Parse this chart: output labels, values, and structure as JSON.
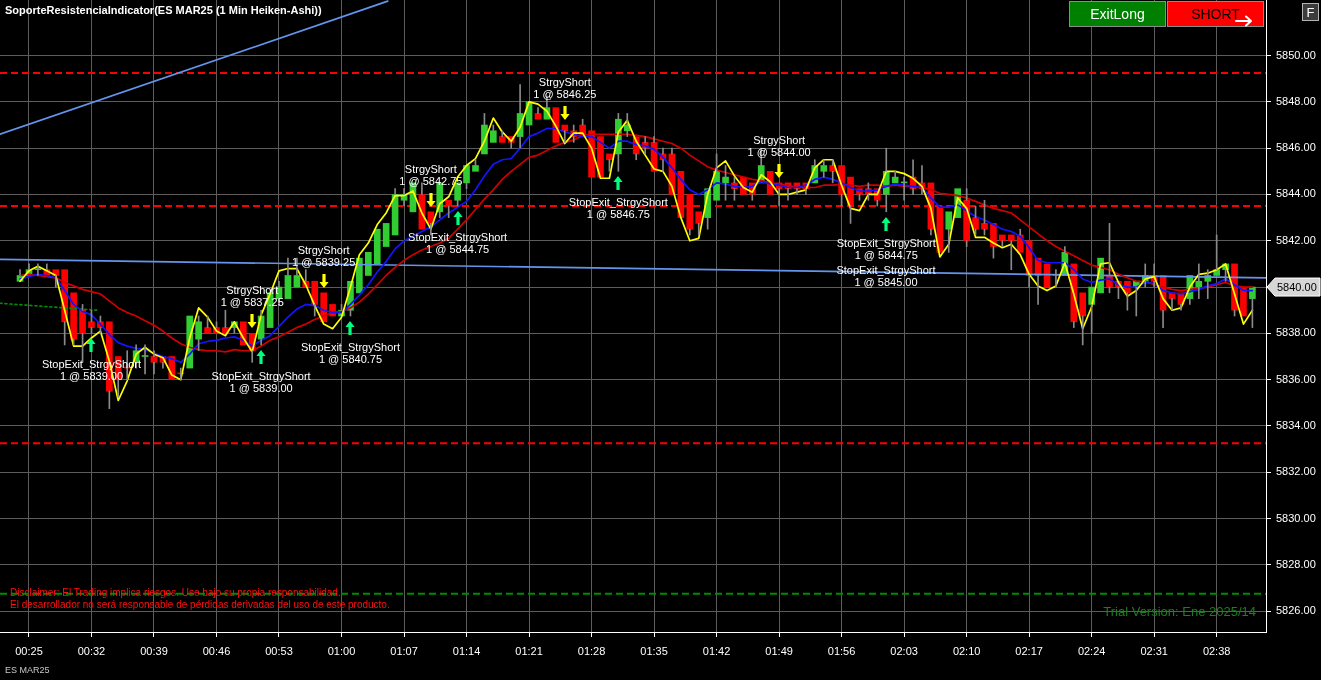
{
  "chart_data": {
    "type": "candlestick",
    "title": "SoporteResistenciaIndicator(ES MAR25 (1 Min Heiken-Ashi))",
    "x": [
      0.4,
      0.4167,
      0.4333,
      0.45,
      0.4667,
      0.4833,
      0.5,
      0.5167,
      0.5333,
      0.55,
      0.5667,
      0.5833,
      0.6,
      0.6167,
      0.6333,
      0.65,
      0.6667,
      0.6833,
      0.7,
      0.7167,
      0.7333,
      0.75,
      0.7667,
      0.7833,
      0.8,
      0.8167,
      0.8333,
      0.85,
      0.8667,
      0.8833,
      0.9,
      0.9167,
      0.9333,
      0.95,
      0.9667,
      0.9833,
      1,
      1.0167,
      1.0333,
      1.05,
      1.0667,
      1.0833,
      1.1,
      1.1167,
      1.1333,
      1.15,
      1.1667,
      1.1833,
      1.2,
      1.2167,
      1.2333,
      1.25,
      1.2667,
      1.2833,
      1.3,
      1.3167,
      1.3333,
      1.35,
      1.3667,
      1.3833,
      1.4,
      1.4167,
      1.4333,
      1.45,
      1.4667,
      1.4833,
      1.5,
      1.5167,
      1.5333,
      1.55,
      1.5667,
      1.5833,
      1.6,
      1.6167,
      1.6333,
      1.65,
      1.6667,
      1.6833,
      1.7,
      1.7167,
      1.7333,
      1.75,
      1.7667,
      1.7833,
      1.8,
      1.8167,
      1.8333,
      1.85,
      1.8667,
      1.8833,
      1.9,
      1.9167,
      1.9333,
      1.95,
      1.9667,
      1.9833,
      2,
      2.0167,
      2.0333,
      2.05,
      2.0667,
      2.0833,
      2.1,
      2.1167,
      2.1333,
      2.15,
      2.1667,
      2.1833,
      2.2,
      2.2167,
      2.2333,
      2.25,
      2.2667,
      2.2833,
      2.3,
      2.3167,
      2.3333,
      2.35,
      2.3667,
      2.3833,
      2.4,
      2.4167,
      2.4333,
      2.45,
      2.4667,
      2.4833,
      2.5,
      2.5167,
      2.5333,
      2.55,
      2.5667,
      2.5833,
      2.6,
      2.6167,
      2.6333,
      2.65,
      2.6667,
      2.6833,
      2.7
    ],
    "ohlc": [
      [
        5840.25,
        5840.75,
        5840.25,
        5840.5
      ],
      [
        5840.5,
        5841.0,
        5840.5,
        5840.75
      ],
      [
        5840.75,
        5841.0,
        5840.5,
        5840.75
      ],
      [
        5840.75,
        5841.0,
        5840.5,
        5840.5
      ],
      [
        5840.75,
        5840.75,
        5840.0,
        5840.5
      ],
      [
        5840.75,
        5840.75,
        5837.5,
        5838.5
      ],
      [
        5839.75,
        5839.75,
        5837.5,
        5837.75
      ],
      [
        5839.0,
        5839.25,
        5836.75,
        5838.0
      ],
      [
        5838.5,
        5839.0,
        5838.0,
        5838.25
      ],
      [
        5838.5,
        5838.75,
        5838.0,
        5838.25
      ],
      [
        5838.5,
        5838.5,
        5834.75,
        5835.5
      ],
      [
        5837.0,
        5837.0,
        5835.25,
        5836.0
      ],
      [
        5836.5,
        5837.25,
        5836.0,
        5836.5
      ],
      [
        5836.75,
        5837.5,
        5836.5,
        5837.25
      ],
      [
        5837.0,
        5837.5,
        5836.25,
        5837.0
      ],
      [
        5837.0,
        5837.25,
        5836.25,
        5836.75
      ],
      [
        5837.0,
        5837.0,
        5836.5,
        5836.75
      ],
      [
        5837.0,
        5837.0,
        5836.0,
        5836.0
      ],
      [
        5836.25,
        5836.5,
        5836.0,
        5836.25
      ],
      [
        5836.5,
        5838.75,
        5836.5,
        5838.75
      ],
      [
        5837.75,
        5838.75,
        5837.25,
        5838.5
      ],
      [
        5838.25,
        5838.75,
        5838.0,
        5838.0
      ],
      [
        5838.25,
        5838.5,
        5838.0,
        5838.0
      ],
      [
        5838.25,
        5839.0,
        5838.0,
        5838.0
      ],
      [
        5838.25,
        5838.5,
        5838.0,
        5838.5
      ],
      [
        5838.5,
        5838.5,
        5837.5,
        5837.5
      ],
      [
        5838.0,
        5838.0,
        5836.75,
        5837.25
      ],
      [
        5837.75,
        5839.0,
        5837.5,
        5838.75
      ],
      [
        5838.25,
        5839.75,
        5838.25,
        5839.75
      ],
      [
        5839.5,
        5840.25,
        5839.25,
        5840.0
      ],
      [
        5839.5,
        5841.25,
        5839.5,
        5840.5
      ],
      [
        5840.0,
        5841.25,
        5840.0,
        5840.5
      ],
      [
        5840.25,
        5840.75,
        5840.0,
        5840.0
      ],
      [
        5840.25,
        5840.25,
        5838.75,
        5839.25
      ],
      [
        5839.75,
        5839.75,
        5838.5,
        5838.5
      ],
      [
        5839.25,
        5839.25,
        5838.75,
        5838.75
      ],
      [
        5838.75,
        5839.25,
        5838.75,
        5839.0
      ],
      [
        5839.0,
        5840.25,
        5838.75,
        5840.25
      ],
      [
        5839.75,
        5841.25,
        5839.75,
        5841.25
      ],
      [
        5840.5,
        5841.5,
        5840.5,
        5841.5
      ],
      [
        5841.0,
        5842.5,
        5841.0,
        5842.5
      ],
      [
        5841.75,
        5842.75,
        5841.75,
        5842.75
      ],
      [
        5842.25,
        5844.25,
        5842.25,
        5844.0
      ],
      [
        5843.75,
        5844.25,
        5843.5,
        5844.0
      ],
      [
        5843.25,
        5844.5,
        5843.25,
        5844.5
      ],
      [
        5844.0,
        5844.5,
        5842.5,
        5842.5
      ],
      [
        5843.25,
        5843.25,
        5842.25,
        5842.75
      ],
      [
        5843.25,
        5844.5,
        5843.0,
        5844.5
      ],
      [
        5843.75,
        5843.75,
        5843.0,
        5843.5
      ],
      [
        5843.75,
        5844.5,
        5843.5,
        5844.5
      ],
      [
        5844.5,
        5845.25,
        5844.25,
        5845.25
      ],
      [
        5845.0,
        5845.5,
        5845.0,
        5845.25
      ],
      [
        5845.75,
        5847.5,
        5845.75,
        5847.0
      ],
      [
        5846.25,
        5847.0,
        5846.25,
        5846.75
      ],
      [
        5846.5,
        5846.75,
        5846.25,
        5846.25
      ],
      [
        5846.5,
        5846.5,
        5846.0,
        5846.25
      ],
      [
        5846.5,
        5848.75,
        5846.0,
        5847.5
      ],
      [
        5847.0,
        5848.0,
        5847.0,
        5848.0
      ],
      [
        5847.5,
        5847.75,
        5847.25,
        5847.25
      ],
      [
        5847.25,
        5848.25,
        5847.25,
        5847.75
      ],
      [
        5847.75,
        5847.75,
        5846.25,
        5846.25
      ],
      [
        5847.0,
        5847.0,
        5846.25,
        5846.75
      ],
      [
        5846.75,
        5847.0,
        5846.25,
        5846.5
      ],
      [
        5847.0,
        5847.25,
        5846.5,
        5846.5
      ],
      [
        5846.75,
        5846.75,
        5844.75,
        5844.75
      ],
      [
        5846.5,
        5846.5,
        5844.75,
        5844.75
      ],
      [
        5845.75,
        5845.75,
        5845.0,
        5845.5
      ],
      [
        5845.75,
        5847.5,
        5845.0,
        5847.25
      ],
      [
        5846.75,
        5847.5,
        5846.5,
        5847.0
      ],
      [
        5846.5,
        5846.5,
        5845.5,
        5845.75
      ],
      [
        5846.25,
        5846.5,
        5845.75,
        5846.0
      ],
      [
        5846.25,
        5846.5,
        5845.0,
        5845.0
      ],
      [
        5845.75,
        5846.0,
        5845.0,
        5845.5
      ],
      [
        5845.75,
        5846.0,
        5844.0,
        5844.0
      ],
      [
        5845.0,
        5845.0,
        5843.0,
        5843.0
      ],
      [
        5844.0,
        5844.0,
        5842.25,
        5842.5
      ],
      [
        5843.25,
        5843.25,
        5842.25,
        5842.75
      ],
      [
        5843.0,
        5844.25,
        5842.5,
        5844.25
      ],
      [
        5843.75,
        5845.75,
        5843.75,
        5845.0
      ],
      [
        5844.5,
        5845.25,
        5843.75,
        5844.75
      ],
      [
        5844.5,
        5844.75,
        5843.75,
        5844.25
      ],
      [
        5844.75,
        5844.75,
        5844.0,
        5844.0
      ],
      [
        5844.5,
        5844.5,
        5843.75,
        5844.0
      ],
      [
        5844.5,
        5846.0,
        5844.5,
        5845.25
      ],
      [
        5845.0,
        5845.0,
        5844.0,
        5844.0
      ],
      [
        5844.5,
        5844.5,
        5843.5,
        5844.25
      ],
      [
        5844.5,
        5844.5,
        5843.75,
        5844.25
      ],
      [
        5844.5,
        5844.5,
        5844.0,
        5844.25
      ],
      [
        5844.5,
        5844.5,
        5844.0,
        5844.25
      ],
      [
        5844.5,
        5845.5,
        5844.5,
        5845.25
      ],
      [
        5845.0,
        5845.5,
        5844.75,
        5845.25
      ],
      [
        5845.25,
        5845.5,
        5844.5,
        5845.0
      ],
      [
        5845.25,
        5845.25,
        5843.5,
        5844.0
      ],
      [
        5844.75,
        5844.75,
        5842.75,
        5843.5
      ],
      [
        5844.25,
        5844.25,
        5843.75,
        5844.0
      ],
      [
        5844.25,
        5844.5,
        5843.75,
        5844.0
      ],
      [
        5844.25,
        5844.25,
        5843.5,
        5843.75
      ],
      [
        5844.0,
        5846.0,
        5843.25,
        5845.0
      ],
      [
        5844.5,
        5845.0,
        5844.5,
        5844.75
      ],
      [
        5844.5,
        5844.75,
        5843.75,
        5844.5
      ],
      [
        5844.75,
        5845.5,
        5844.0,
        5844.25
      ],
      [
        5844.5,
        5845.25,
        5844.0,
        5844.25
      ],
      [
        5844.5,
        5844.5,
        5842.25,
        5842.5
      ],
      [
        5843.5,
        5843.5,
        5841.5,
        5841.5
      ],
      [
        5842.5,
        5843.25,
        5841.5,
        5843.25
      ],
      [
        5843.0,
        5844.25,
        5843.0,
        5844.25
      ],
      [
        5843.75,
        5844.25,
        5841.75,
        5842.0
      ],
      [
        5843.0,
        5843.5,
        5842.25,
        5842.5
      ],
      [
        5842.75,
        5843.75,
        5842.25,
        5842.5
      ],
      [
        5842.75,
        5842.75,
        5841.25,
        5841.75
      ],
      [
        5842.25,
        5842.25,
        5841.75,
        5842.0
      ],
      [
        5842.25,
        5842.25,
        5840.75,
        5842.0
      ],
      [
        5842.25,
        5842.5,
        5841.5,
        5841.5
      ],
      [
        5842.0,
        5842.0,
        5840.0,
        5840.5
      ],
      [
        5841.25,
        5841.25,
        5839.25,
        5840.5
      ],
      [
        5841.0,
        5841.0,
        5840.0,
        5840.0
      ],
      [
        5840.5,
        5840.75,
        5840.0,
        5840.5
      ],
      [
        5840.5,
        5841.75,
        5840.5,
        5841.5
      ],
      [
        5841.0,
        5841.0,
        5838.25,
        5838.5
      ],
      [
        5839.75,
        5839.75,
        5837.5,
        5838.75
      ],
      [
        5839.25,
        5840.0,
        5838.0,
        5840.0
      ],
      [
        5839.75,
        5841.25,
        5839.75,
        5841.25
      ],
      [
        5840.5,
        5842.75,
        5839.75,
        5840.0
      ],
      [
        5840.25,
        5840.25,
        5839.5,
        5840.0
      ],
      [
        5840.25,
        5840.25,
        5839.0,
        5839.75
      ],
      [
        5840.0,
        5840.25,
        5838.75,
        5840.25
      ],
      [
        5840.25,
        5841.0,
        5840.0,
        5840.5
      ],
      [
        5840.5,
        5841.0,
        5840.0,
        5840.25
      ],
      [
        5840.5,
        5840.5,
        5838.25,
        5839.0
      ],
      [
        5839.75,
        5839.75,
        5839.0,
        5839.5
      ],
      [
        5839.75,
        5839.75,
        5839.0,
        5839.25
      ],
      [
        5839.5,
        5840.5,
        5839.25,
        5840.5
      ],
      [
        5840.0,
        5841.0,
        5839.5,
        5840.25
      ],
      [
        5840.25,
        5840.75,
        5839.5,
        5840.5
      ],
      [
        5840.5,
        5842.25,
        5840.5,
        5840.75
      ],
      [
        5840.75,
        5841.0,
        5840.25,
        5841.0
      ],
      [
        5841.0,
        5841.0,
        5838.75,
        5839.0
      ],
      [
        5840.0,
        5840.0,
        5838.75,
        5838.75
      ],
      [
        5839.5,
        5840.0,
        5838.25,
        5840.0
      ]
    ],
    "colors": [
      "#32cd32",
      "#32cd32",
      "#32cd32",
      "#ff0000",
      "#ff0000",
      "#ff0000",
      "#ff0000",
      "#ff0000",
      "#ff0000",
      "#ff0000",
      "#ff0000",
      "#ff0000",
      "#ff0000",
      "#32cd32",
      "#32cd32",
      "#ff0000",
      "#ff0000",
      "#ff0000",
      "#ff0000",
      "#32cd32",
      "#32cd32",
      "#ff0000",
      "#ff0000",
      "#ff0000",
      "#32cd32",
      "#ff0000",
      "#ff0000",
      "#32cd32",
      "#32cd32",
      "#32cd32",
      "#32cd32",
      "#32cd32",
      "#ff0000",
      "#ff0000",
      "#ff0000",
      "#ff0000",
      "#32cd32",
      "#32cd32",
      "#32cd32",
      "#32cd32",
      "#32cd32",
      "#32cd32",
      "#32cd32",
      "#32cd32",
      "#32cd32",
      "#ff0000",
      "#ff0000",
      "#32cd32",
      "#ff0000",
      "#32cd32",
      "#32cd32",
      "#32cd32",
      "#32cd32",
      "#32cd32",
      "#ff0000",
      "#ff0000",
      "#32cd32",
      "#32cd32",
      "#ff0000",
      "#32cd32",
      "#ff0000",
      "#ff0000",
      "#ff0000",
      "#ff0000",
      "#ff0000",
      "#ff0000",
      "#ff0000",
      "#32cd32",
      "#32cd32",
      "#ff0000",
      "#ff0000",
      "#ff0000",
      "#ff0000",
      "#ff0000",
      "#ff0000",
      "#ff0000",
      "#ff0000",
      "#32cd32",
      "#32cd32",
      "#32cd32",
      "#ff0000",
      "#ff0000",
      "#ff0000",
      "#32cd32",
      "#ff0000",
      "#ff0000",
      "#ff0000",
      "#ff0000",
      "#ff0000",
      "#32cd32",
      "#32cd32",
      "#ff0000",
      "#ff0000",
      "#ff0000",
      "#ff0000",
      "#ff0000",
      "#ff0000",
      "#32cd32",
      "#32cd32",
      "#32cd32",
      "#ff0000",
      "#ff0000",
      "#ff0000",
      "#ff0000",
      "#32cd32",
      "#32cd32",
      "#ff0000",
      "#ff0000",
      "#ff0000",
      "#ff0000",
      "#ff0000",
      "#ff0000",
      "#ff0000",
      "#ff0000",
      "#ff0000",
      "#ff0000",
      "#ff0000",
      "#32cd32",
      "#ff0000",
      "#ff0000",
      "#32cd32",
      "#32cd32",
      "#ff0000",
      "#ff0000",
      "#ff0000",
      "#32cd32",
      "#32cd32",
      "#ff0000",
      "#ff0000",
      "#ff0000",
      "#ff0000",
      "#32cd32",
      "#32cd32",
      "#32cd32",
      "#32cd32",
      "#32cd32",
      "#ff0000",
      "#ff0000",
      "#32cd32"
    ],
    "series": [
      {
        "type": "line",
        "color": "#6495ed",
        "x": [
          0.3626,
          1.0863
        ],
        "values": [
          5846.6,
          5852.35
        ]
      },
      {
        "type": "line",
        "color": "#6495ed",
        "x": [
          0.3626,
          2.7254
        ],
        "values": [
          5841.2,
          5840.4
        ]
      },
      {
        "type": "line",
        "color": "#008c00",
        "line_style": "dotted",
        "x": [
          0.3626,
          0.543
        ],
        "values": [
          5839.3,
          5839.0
        ]
      },
      {
        "type": "line",
        "color": "#d00000",
        "values": [
          5840.5,
          5840.55,
          5840.5,
          5840.45,
          5840.4,
          5840.2,
          5840.05,
          5839.9,
          5839.8,
          5839.7,
          5839.4,
          5839.1,
          5838.9,
          5838.75,
          5838.55,
          5838.35,
          5838.1,
          5837.8,
          5837.55,
          5837.4,
          5837.3,
          5837.25,
          5837.25,
          5837.2,
          5837.3,
          5837.25,
          5837.25,
          5837.45,
          5837.7,
          5837.85,
          5838.05,
          5838.25,
          5838.4,
          5838.6,
          5838.75,
          5838.9,
          5838.95,
          5839.1,
          5839.35,
          5839.7,
          5840.1,
          5840.5,
          5840.85,
          5841.15,
          5841.4,
          5841.6,
          5841.75,
          5841.9,
          5842.1,
          5842.5,
          5842.9,
          5843.35,
          5843.8,
          5844.2,
          5844.65,
          5845.0,
          5845.3,
          5845.6,
          5845.7,
          5845.9,
          5846.1,
          5846.25,
          5846.35,
          5846.55,
          5846.6,
          5846.6,
          5846.6,
          5846.6,
          5846.6,
          5846.55,
          5846.5,
          5846.4,
          5846.3,
          5846.2,
          5846.0,
          5845.7,
          5845.45,
          5845.2,
          5845.05,
          5844.95,
          5844.85,
          5844.75,
          5844.65,
          5844.6,
          5844.5,
          5844.45,
          5844.4,
          5844.3,
          5844.3,
          5844.3,
          5844.4,
          5844.4,
          5844.45,
          5844.4,
          5844.35,
          5844.4,
          5844.4,
          5844.35,
          5844.4,
          5844.35,
          5844.35,
          5844.3,
          5844.2,
          5844.05,
          5844.0,
          5843.95,
          5843.85,
          5843.7,
          5843.55,
          5843.4,
          5843.3,
          5843.2,
          5842.9,
          5842.6,
          5842.3,
          5842.0,
          5841.75,
          5841.55,
          5841.35,
          5841.15,
          5840.95,
          5840.85,
          5840.75,
          5840.55,
          5840.4,
          5840.25,
          5840.25,
          5840.1,
          5840.0,
          5839.9,
          5839.85,
          5839.9,
          5839.95,
          5840.0,
          5840.1,
          5840.2,
          5840.05,
          5840.0,
          5840.0
        ]
      },
      {
        "type": "line",
        "color": "#1414ff",
        "values": [
          5840.35,
          5840.45,
          5840.55,
          5840.5,
          5840.4,
          5839.85,
          5839.25,
          5838.95,
          5838.8,
          5838.4,
          5837.95,
          5837.6,
          5837.45,
          5837.35,
          5837.3,
          5837.15,
          5837.0,
          5836.9,
          5836.75,
          5837.1,
          5837.55,
          5837.65,
          5837.7,
          5837.8,
          5837.85,
          5837.7,
          5837.45,
          5837.7,
          5837.9,
          5838.3,
          5838.7,
          5839.05,
          5839.25,
          5839.2,
          5839.0,
          5838.9,
          5838.9,
          5839.25,
          5839.65,
          5840.1,
          5840.65,
          5841.1,
          5841.65,
          5842.0,
          5842.2,
          5842.4,
          5842.6,
          5842.9,
          5843.2,
          5843.45,
          5843.7,
          5844.2,
          5844.8,
          5845.3,
          5845.5,
          5845.55,
          5846.0,
          5846.5,
          5846.65,
          5846.85,
          5846.85,
          5846.7,
          5846.6,
          5846.5,
          5846.5,
          5846.25,
          5846.0,
          5846.3,
          5846.3,
          5846.15,
          5846.1,
          5845.95,
          5845.6,
          5845.15,
          5844.65,
          5844.2,
          5844.0,
          5844.2,
          5844.5,
          5844.45,
          5844.35,
          5844.3,
          5844.35,
          5844.55,
          5844.45,
          5844.4,
          5844.3,
          5844.3,
          5844.4,
          5844.65,
          5844.75,
          5844.65,
          5844.5,
          5844.3,
          5844.15,
          5844.15,
          5844.2,
          5844.35,
          5844.45,
          5844.4,
          5844.35,
          5844.3,
          5843.85,
          5843.45,
          5843.45,
          5843.55,
          5843.3,
          5843.05,
          5842.9,
          5842.7,
          5842.5,
          5842.4,
          5842.2,
          5841.7,
          5841.15,
          5841.05,
          5841.05,
          5841.05,
          5840.75,
          5840.35,
          5840.2,
          5840.3,
          5840.35,
          5840.1,
          5840.0,
          5840.0,
          5840.2,
          5840.15,
          5839.85,
          5839.75,
          5839.7,
          5839.8,
          5839.9,
          5840.05,
          5840.15,
          5840.35,
          5840.1,
          5839.85,
          5839.85
        ]
      },
      {
        "type": "line",
        "color": "#ffff00",
        "values": [
          5840.25,
          5840.7,
          5840.9,
          5840.7,
          5840.5,
          5839.0,
          5837.45,
          5837.45,
          5837.8,
          5838.1,
          5836.8,
          5835.1,
          5835.95,
          5837.1,
          5837.4,
          5837.1,
          5836.95,
          5836.2,
          5836.0,
          5837.8,
          5839.1,
          5838.7,
          5838.1,
          5837.9,
          5838.5,
          5837.8,
          5837.2,
          5838.8,
          5839.7,
          5840.7,
          5840.8,
          5840.8,
          5840.1,
          5839.2,
          5838.4,
          5838.2,
          5838.7,
          5840.0,
          5841.4,
          5841.9,
          5842.7,
          5843.2,
          5843.95,
          5843.95,
          5844.15,
          5843.2,
          5842.5,
          5843.6,
          5843.9,
          5844.75,
          5845.25,
          5845.55,
          5846.3,
          5847.3,
          5846.7,
          5846.3,
          5846.9,
          5848.0,
          5847.9,
          5847.6,
          5846.95,
          5846.2,
          5846.65,
          5846.65,
          5846.0,
          5844.7,
          5844.7,
          5846.7,
          5847.2,
          5846.3,
          5845.7,
          5845.1,
          5845.0,
          5844.35,
          5843.0,
          5842.0,
          5842.1,
          5844.0,
          5845.15,
          5845.45,
          5844.8,
          5844.3,
          5844.1,
          5844.85,
          5844.55,
          5844.0,
          5844.0,
          5844.1,
          5844.2,
          5845.15,
          5845.5,
          5845.5,
          5844.4,
          5843.4,
          5843.3,
          5844.0,
          5844.0,
          5845.0,
          5845.0,
          5844.9,
          5844.7,
          5844.35,
          5843.4,
          5841.3,
          5841.85,
          5843.85,
          5843.4,
          5842.15,
          5842.15,
          5841.9,
          5841.7,
          5841.85,
          5841.4,
          5840.55,
          5840.05,
          5839.85,
          5840.05,
          5841.05,
          5839.7,
          5838.2,
          5839.15,
          5841.0,
          5841.05,
          5840.2,
          5839.6,
          5839.85,
          5840.35,
          5840.45,
          5839.5,
          5839.0,
          5839.1,
          5840.0,
          5840.55,
          5840.6,
          5840.75,
          5841.0,
          5839.7,
          5838.4,
          5839.0
        ]
      }
    ],
    "xlim": [
      0.3626,
      2.7254
    ],
    "xticks": [
      {
        "value": 0.4167,
        "label": "00:25"
      },
      {
        "value": 0.5333,
        "label": "00:32"
      },
      {
        "value": 0.65,
        "label": "00:39"
      },
      {
        "value": 0.7667,
        "label": "00:46"
      },
      {
        "value": 0.8833,
        "label": "00:53"
      },
      {
        "value": 1,
        "label": "01:00"
      },
      {
        "value": 1.1167,
        "label": "01:07"
      },
      {
        "value": 1.2333,
        "label": "01:14"
      },
      {
        "value": 1.35,
        "label": "01:21"
      },
      {
        "value": 1.4667,
        "label": "01:28"
      },
      {
        "value": 1.5833,
        "label": "01:35"
      },
      {
        "value": 1.7,
        "label": "01:42"
      },
      {
        "value": 1.8167,
        "label": "01:49"
      },
      {
        "value": 1.9333,
        "label": "01:56"
      },
      {
        "value": 2.05,
        "label": "02:03"
      },
      {
        "value": 2.1667,
        "label": "02:10"
      },
      {
        "value": 2.2833,
        "label": "02:17"
      },
      {
        "value": 2.4,
        "label": "02:24"
      },
      {
        "value": 2.5167,
        "label": "02:31"
      },
      {
        "value": 2.6333,
        "label": "02:38"
      }
    ],
    "ylim": [
      5825.1,
      5852.4
    ],
    "yticks": [
      {
        "value": 5826,
        "label": "5826.00"
      },
      {
        "value": 5828,
        "label": "5828.00"
      },
      {
        "value": 5830,
        "label": "5830.00"
      },
      {
        "value": 5832,
        "label": "5832.00"
      },
      {
        "value": 5834,
        "label": "5834.00"
      },
      {
        "value": 5836,
        "label": "5836.00"
      },
      {
        "value": 5838,
        "label": "5838.00"
      },
      {
        "value": 5840,
        "label": null
      },
      {
        "value": 5842,
        "label": "5842.00"
      },
      {
        "value": 5844,
        "label": "5844.00"
      },
      {
        "value": 5846,
        "label": "5846.00"
      },
      {
        "value": 5848,
        "label": "5848.00"
      },
      {
        "value": 5850,
        "label": "5850.00"
      }
    ],
    "grid": true,
    "marker": "none",
    "ref_lines": [
      {
        "axis": "y",
        "value": 5849.25,
        "color": "#ff0000",
        "line_style": "dashed"
      },
      {
        "axis": "y",
        "value": 5843.5,
        "color": "#ff0000",
        "line_style": "dashed"
      },
      {
        "axis": "y",
        "value": 5833.25,
        "color": "#ff0000",
        "line_style": "dashed"
      },
      {
        "axis": "y",
        "value": 5826.75,
        "color": "#008c00",
        "line_style": "dashed"
      }
    ],
    "annotations": [
      "ExitLong",
      "SHORT",
      "F",
      "Disclaimer: El Trading implica riesgos. Use bajo su propia responsabilidad.",
      "El desarrollador no será responsable de pérdidas derivadas del uso de este producto.",
      "Trial Version: Ene 2025/14",
      "ES MAR25",
      "5840.00",
      "StopExit_StrgyShort\n1 @ 5845.00",
      {
        "text": "StopExit_StrgyShort\n1 @ 5839.00",
        "x": 0.5333,
        "y": 5838.0
      },
      {
        "text": "StrgyShort\n1 @ 5837.25",
        "x": 0.8333,
        "y": 5838.0
      },
      {
        "text": "StopExit_StrgyShort\n1 @ 5839.00",
        "x": 0.85,
        "y": 5837.5
      },
      {
        "text": "StrgyShort\n1 @ 5839.25",
        "x": 0.9667,
        "y": 5839.75
      },
      {
        "text": "StopExit_StrgyShort\n1 @ 5840.75",
        "x": 1.0167,
        "y": 5838.75
      },
      {
        "text": "StrgyShort\n1 @ 5842.75",
        "x": 1.1667,
        "y": 5843.25
      },
      {
        "text": "StopExit_StrgyShort\n1 @ 5844.75",
        "x": 1.2167,
        "y": 5843.5
      },
      {
        "text": "StrgyShort\n1 @ 5846.25",
        "x": 1.4167,
        "y": 5847.0
      },
      {
        "text": "StopExit_StrgyShort\n1 @ 5846.75",
        "x": 1.5167,
        "y": 5845.0
      },
      {
        "text": "StrgyShort\n1 @ 5844.00",
        "x": 1.8167,
        "y": 5844.5
      },
      {
        "text": "StopExit_StrgyShort\n1 @ 5844.75",
        "x": 2.0167,
        "y": 5843.25
      }
    ]
  }
}
